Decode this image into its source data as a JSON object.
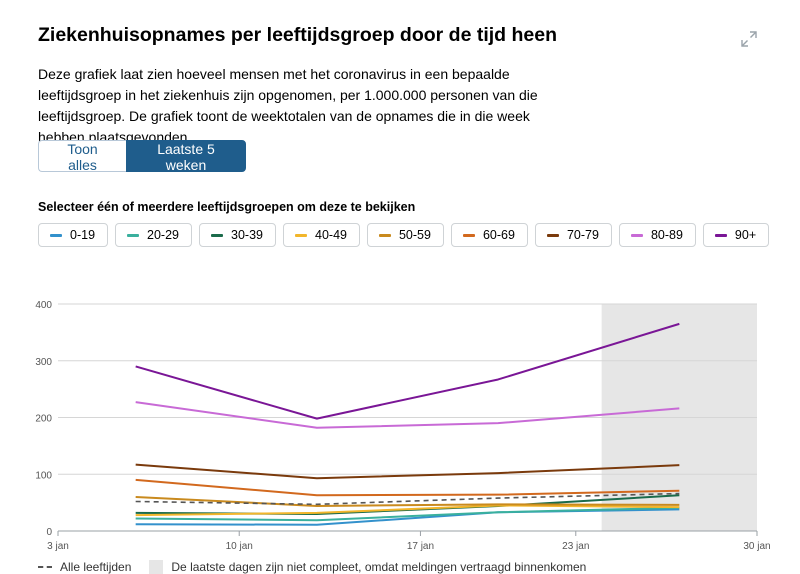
{
  "title": "Ziekenhuisopnames per leeftijdsgroep door de tijd heen",
  "description": "Deze grafiek laat zien hoeveel mensen met het coronavirus in een bepaalde leeftijdsgroep in het ziekenhuis zijn opgenomen, per 1.000.000 personen van die leeftijdsgroep. De grafiek toont de weektotalen van de opnames die in die week hebben plaatsgevonden.",
  "toggle": {
    "show_all": "Toon alles",
    "last_5_weeks": "Laatste 5 weken"
  },
  "select_label": "Selecteer één of meerdere leeftijdsgroepen om deze te bekijken",
  "legend": {
    "all_ages": "Alle leeftijden",
    "incomplete_note": "De laatste dagen zijn niet compleet, omdat meldingen vertraagd binnenkomen"
  },
  "chart_data": {
    "type": "line",
    "title": "Ziekenhuisopnames per leeftijdsgroep door de tijd heen",
    "xlabel": "",
    "ylabel": "",
    "ylim": [
      0,
      400
    ],
    "xlim": [
      0,
      27
    ],
    "x_ticks": [
      {
        "x": 0,
        "label": "3 jan"
      },
      {
        "x": 7,
        "label": "10 jan"
      },
      {
        "x": 14,
        "label": "17 jan"
      },
      {
        "x": 20,
        "label": "23 jan"
      },
      {
        "x": 27,
        "label": "30 jan"
      }
    ],
    "y_ticks": [
      0,
      100,
      200,
      300,
      400
    ],
    "incomplete_range": [
      21,
      27
    ],
    "x": [
      3,
      10,
      17,
      24
    ],
    "series": [
      {
        "name": "0-19",
        "color": "#3391cc",
        "values": [
          12,
          11,
          33,
          38
        ]
      },
      {
        "name": "20-29",
        "color": "#3ab09e",
        "values": [
          22,
          19,
          33,
          41
        ]
      },
      {
        "name": "30-39",
        "color": "#1b6b4b",
        "values": [
          32,
          30,
          44,
          63
        ]
      },
      {
        "name": "40-49",
        "color": "#f2b62b",
        "values": [
          28,
          32,
          45,
          42
        ]
      },
      {
        "name": "50-59",
        "color": "#c98a1e",
        "values": [
          60,
          44,
          47,
          46
        ]
      },
      {
        "name": "60-69",
        "color": "#d2691e",
        "values": [
          90,
          63,
          64,
          71
        ]
      },
      {
        "name": "70-79",
        "color": "#7a3a0c",
        "values": [
          117,
          93,
          102,
          116
        ]
      },
      {
        "name": "80-89",
        "color": "#c86ad6",
        "values": [
          227,
          182,
          190,
          216
        ]
      },
      {
        "name": "90+",
        "color": "#7a1696",
        "values": [
          290,
          198,
          267,
          365
        ]
      },
      {
        "name": "Alle leeftijden",
        "color": "#555555",
        "dashed": true,
        "values": [
          52,
          47,
          58,
          66
        ]
      }
    ]
  }
}
